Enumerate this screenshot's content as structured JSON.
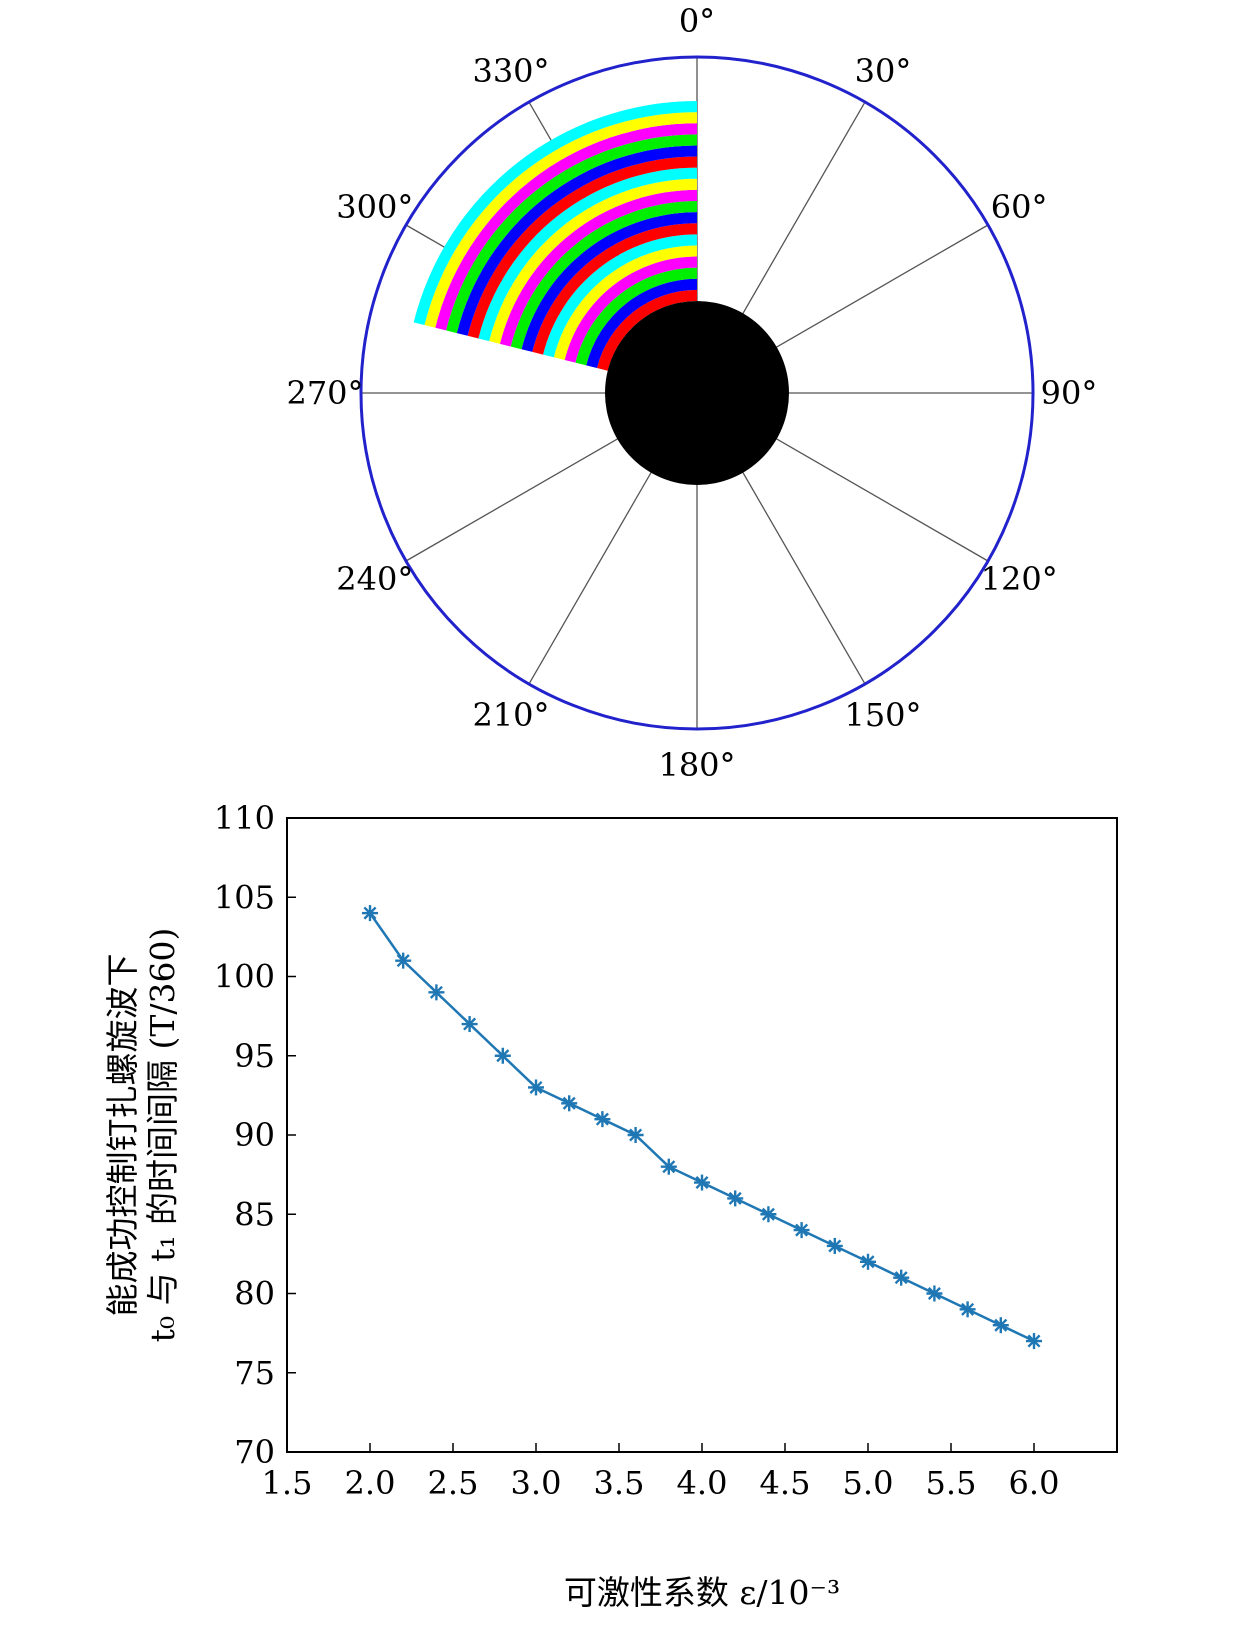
{
  "chart_data": [
    {
      "type": "polar",
      "angle_labels": [
        "0°",
        "30°",
        "60°",
        "90°",
        "120°",
        "150°",
        "180°",
        "210°",
        "240°",
        "270°",
        "300°",
        "330°"
      ],
      "angle_values": [
        0,
        30,
        60,
        90,
        120,
        150,
        180,
        210,
        240,
        270,
        300,
        330
      ],
      "direction": "clockwise",
      "zero_location": "top",
      "sector": {
        "start_deg": 284,
        "end_deg": 360
      },
      "band_count": 18,
      "band_colors": [
        "#ff0000",
        "#0000ff",
        "#00ee00",
        "#ff00ff",
        "#ffff00",
        "#00ffff"
      ],
      "outer_ring_color": "#2222cc",
      "core_color": "#000000"
    },
    {
      "type": "line",
      "x": [
        2.0,
        2.2,
        2.4,
        2.6,
        2.8,
        3.0,
        3.2,
        3.4,
        3.6,
        3.8,
        4.0,
        4.2,
        4.4,
        4.6,
        4.8,
        5.0,
        5.2,
        5.4,
        5.6,
        5.8,
        6.0
      ],
      "y": [
        104,
        101,
        99,
        97,
        95,
        93,
        92,
        91,
        90,
        88,
        87,
        86,
        85,
        84,
        83,
        82,
        81,
        80,
        79,
        78,
        77
      ],
      "xlim": [
        1.5,
        6.5
      ],
      "ylim": [
        70,
        110
      ],
      "xticks": [
        1.5,
        2.0,
        2.5,
        3.0,
        3.5,
        4.0,
        4.5,
        5.0,
        5.5,
        6.0
      ],
      "xtick_labels": [
        "1.5",
        "2.0",
        "2.5",
        "3.0",
        "3.5",
        "4.0",
        "4.5",
        "5.0",
        "5.5",
        "6.0"
      ],
      "yticks": [
        70,
        75,
        80,
        85,
        90,
        95,
        100,
        105,
        110
      ],
      "ytick_labels": [
        "70",
        "75",
        "80",
        "85",
        "90",
        "95",
        "100",
        "105",
        "110"
      ],
      "xlabel": "可激性系数 ε/10⁻³",
      "ylabel_line1": "能成功控制钉扎螺旋波下",
      "ylabel_line2": "t₀ 与 t₁ 的时间间隔 (T/360)",
      "marker": "asterisk",
      "line_color": "#1f77b4",
      "grid": false
    }
  ]
}
